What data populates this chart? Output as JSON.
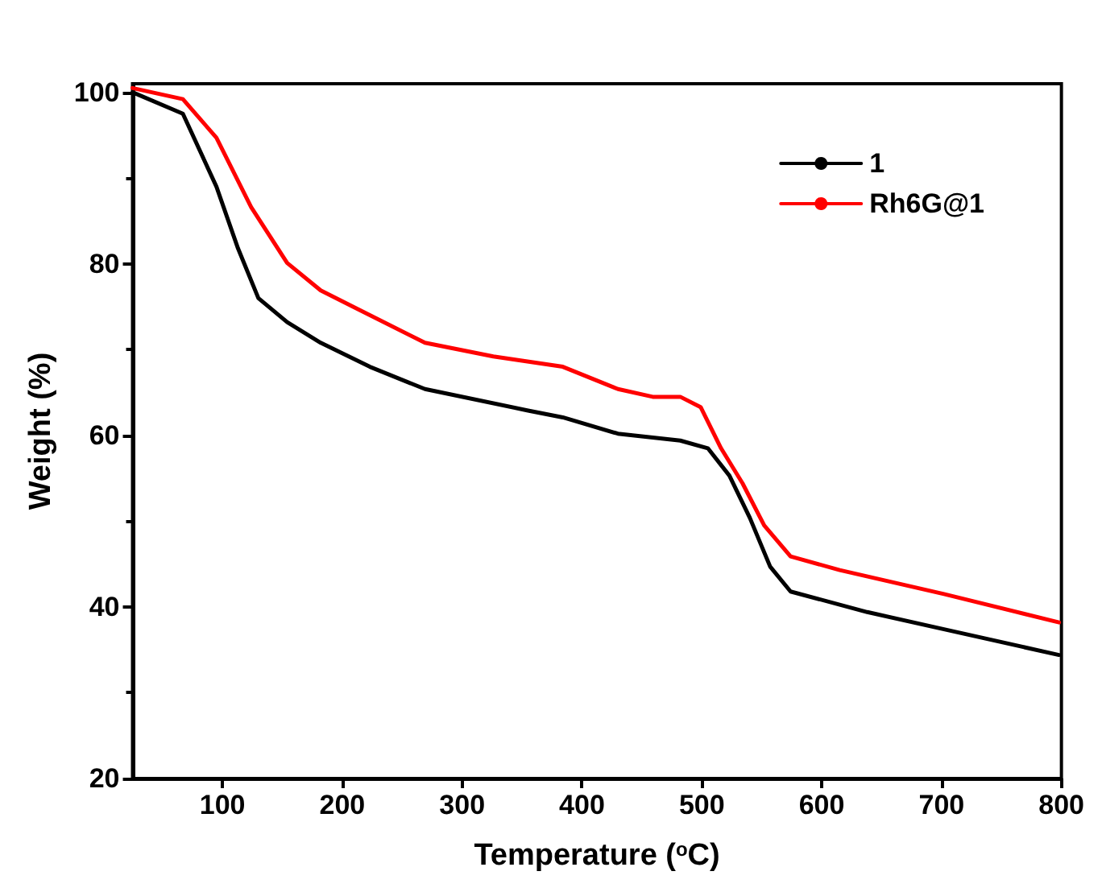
{
  "chart_data": {
    "type": "line",
    "xlabel": "Temperature ($^{o}$C)",
    "ylabel": "Weight (%)",
    "xlim": [
      25,
      800
    ],
    "xticks": [
      100,
      200,
      300,
      400,
      500,
      600,
      700,
      800
    ],
    "ylim": [
      20,
      101
    ],
    "yticks": [
      20,
      40,
      60,
      80,
      100
    ],
    "grid": false,
    "legend": "top right",
    "marker": "none",
    "line_style": "solid",
    "series": [
      {
        "name": "1",
        "color": "#000000",
        "x": [
          25,
          67,
          95,
          113,
          130,
          154,
          182,
          223,
          269,
          355,
          384,
          430,
          482,
          505,
          523,
          540,
          557,
          574,
          638,
          702,
          798
        ],
        "values": [
          100,
          97.5,
          89,
          81.8,
          76,
          73.2,
          70.8,
          68,
          65.4,
          62.9,
          62.1,
          60.2,
          59.4,
          58.5,
          55.3,
          50.4,
          44.7,
          41.8,
          39.4,
          37.4,
          34.4
        ]
      },
      {
        "name": "Rh6G@1",
        "color": "#ff0000",
        "x": [
          25,
          67,
          95,
          124,
          154,
          182,
          212,
          269,
          326,
          384,
          430,
          459,
          482,
          499,
          516,
          534,
          552,
          574,
          615,
          702,
          798
        ],
        "values": [
          100.5,
          99.2,
          94.7,
          86.6,
          80.1,
          76.9,
          74.8,
          70.8,
          69.2,
          68,
          65.4,
          64.5,
          64.5,
          63.3,
          58.5,
          54.4,
          49.5,
          45.9,
          44.3,
          41.5,
          38.2
        ]
      }
    ]
  }
}
